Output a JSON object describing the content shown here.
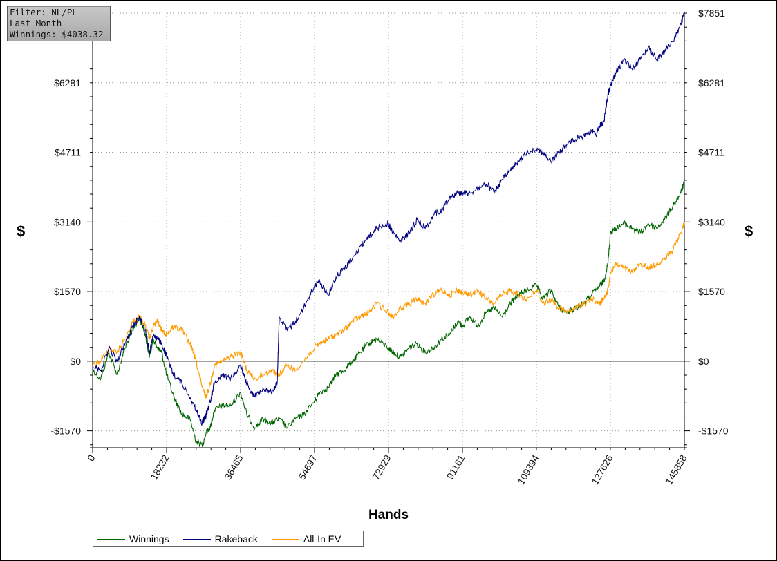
{
  "filter_box": {
    "line1": "Filter: NL/PL",
    "line2": "Last Month",
    "line3": "Winnings: $4038.32"
  },
  "chart_data": {
    "type": "line",
    "xlabel": "Hands",
    "ylabel": "$",
    "y2label": "$",
    "xlim": [
      0,
      145858
    ],
    "ylim": [
      -1950,
      7851
    ],
    "x_ticks": [
      0,
      18232,
      36465,
      54697,
      72929,
      91161,
      109394,
      127626,
      145858
    ],
    "x_tick_labels": [
      "0",
      "18232",
      "36465",
      "54697",
      "72929",
      "91161",
      "109394",
      "127626",
      "145858"
    ],
    "y_ticks": [
      -1570,
      0,
      1570,
      3140,
      4711,
      6281,
      7851
    ],
    "y_tick_labels": [
      "-$1570",
      "$0",
      "$1570",
      "$3140",
      "$4711",
      "$6281",
      "$7851"
    ],
    "grid": true,
    "legend_position": "bottom-left",
    "series": [
      {
        "name": "Winnings",
        "color": "#006400",
        "x": [
          0,
          2000,
          4000,
          6000,
          8000,
          10000,
          11500,
          13000,
          14000,
          15000,
          16000,
          17000,
          18232,
          20000,
          22000,
          24000,
          25500,
          27000,
          28000,
          29000,
          30000,
          32000,
          34000,
          36465,
          38000,
          40000,
          42000,
          44000,
          46000,
          48000,
          50000,
          52000,
          54697,
          56000,
          58000,
          60000,
          62000,
          64000,
          66000,
          68000,
          70000,
          72929,
          74000,
          76000,
          78000,
          80000,
          82000,
          84000,
          86000,
          88000,
          90000,
          91161,
          93000,
          95000,
          97000,
          99000,
          101000,
          103000,
          105000,
          107000,
          109394,
          111000,
          113000,
          115000,
          117000,
          119000,
          121000,
          123000,
          125000,
          126000,
          127000,
          127626,
          129000,
          131000,
          133000,
          135000,
          137000,
          139000,
          141000,
          143000,
          145000,
          145858
        ],
        "y": [
          -200,
          -400,
          200,
          -300,
          300,
          700,
          1000,
          600,
          100,
          500,
          300,
          200,
          -300,
          -800,
          -1200,
          -1300,
          -1800,
          -1900,
          -1600,
          -1500,
          -1100,
          -1000,
          -1000,
          -700,
          -1200,
          -1500,
          -1300,
          -1400,
          -1300,
          -1500,
          -1300,
          -1200,
          -900,
          -700,
          -600,
          -300,
          -200,
          0,
          200,
          400,
          500,
          300,
          200,
          100,
          300,
          400,
          200,
          300,
          500,
          600,
          900,
          800,
          1000,
          800,
          1100,
          1200,
          1000,
          1300,
          1500,
          1600,
          1700,
          1400,
          1600,
          1200,
          1100,
          1200,
          1300,
          1500,
          1700,
          1800,
          2200,
          2900,
          3000,
          3100,
          3000,
          2900,
          3100,
          3000,
          3200,
          3500,
          3800,
          4038
        ]
      },
      {
        "name": "Rakeback",
        "color": "#000080",
        "x": [
          0,
          2000,
          4000,
          6000,
          8000,
          10000,
          11500,
          13000,
          14000,
          15000,
          16000,
          17000,
          18232,
          20000,
          22000,
          24000,
          25500,
          27000,
          28000,
          29000,
          30000,
          32000,
          34000,
          36465,
          38000,
          40000,
          42000,
          44000,
          45500,
          46000,
          48000,
          50000,
          52000,
          54697,
          56000,
          58000,
          60000,
          62000,
          64000,
          66000,
          68000,
          70000,
          72929,
          74000,
          76000,
          78000,
          80000,
          82000,
          84000,
          86000,
          88000,
          90000,
          91161,
          93000,
          95000,
          97000,
          99000,
          101000,
          103000,
          105000,
          107000,
          109394,
          111000,
          113000,
          115000,
          117000,
          119000,
          121000,
          123000,
          124000,
          125000,
          126000,
          127000,
          127626,
          129000,
          131000,
          133000,
          135000,
          137000,
          139000,
          141000,
          143000,
          145000,
          145858
        ],
        "y": [
          -100,
          -200,
          300,
          0,
          400,
          800,
          1000,
          700,
          200,
          600,
          500,
          400,
          100,
          -300,
          -500,
          -800,
          -1100,
          -1400,
          -1200,
          -900,
          -500,
          -300,
          -400,
          -100,
          -500,
          -800,
          -600,
          -700,
          -500,
          1000,
          700,
          900,
          1200,
          1700,
          1800,
          1500,
          1900,
          2100,
          2300,
          2600,
          2800,
          3000,
          3100,
          2900,
          2700,
          2900,
          3200,
          3000,
          3300,
          3400,
          3700,
          3800,
          3800,
          3800,
          3900,
          4000,
          3800,
          4100,
          4300,
          4500,
          4700,
          4800,
          4700,
          4500,
          4700,
          4900,
          5000,
          5100,
          5200,
          5100,
          5300,
          5400,
          6000,
          6200,
          6500,
          6800,
          6600,
          6800,
          7100,
          6800,
          7000,
          7200,
          7600,
          7851
        ]
      },
      {
        "name": "All-In EV",
        "color": "#ff9900",
        "x": [
          0,
          2000,
          4000,
          6000,
          8000,
          10000,
          11500,
          13000,
          14000,
          15000,
          16000,
          17000,
          18232,
          20000,
          22000,
          24000,
          25500,
          27000,
          28000,
          29000,
          30000,
          32000,
          34000,
          36465,
          38000,
          40000,
          42000,
          44000,
          46000,
          48000,
          50000,
          52000,
          54697,
          56000,
          58000,
          60000,
          62000,
          64000,
          66000,
          68000,
          70000,
          72929,
          74000,
          76000,
          78000,
          80000,
          82000,
          84000,
          86000,
          88000,
          90000,
          91161,
          93000,
          95000,
          97000,
          99000,
          101000,
          103000,
          105000,
          107000,
          109394,
          111000,
          113000,
          115000,
          117000,
          119000,
          121000,
          123000,
          125000,
          126000,
          127000,
          127626,
          129000,
          131000,
          133000,
          135000,
          137000,
          139000,
          141000,
          143000,
          145000,
          145858
        ],
        "y": [
          -100,
          0,
          300,
          200,
          500,
          900,
          1000,
          800,
          500,
          800,
          900,
          700,
          600,
          800,
          700,
          400,
          0,
          -600,
          -800,
          -500,
          -100,
          0,
          100,
          200,
          -200,
          -400,
          -300,
          -200,
          -300,
          -100,
          -200,
          0,
          300,
          400,
          500,
          600,
          700,
          900,
          1000,
          1100,
          1300,
          1100,
          1000,
          1200,
          1300,
          1400,
          1300,
          1500,
          1600,
          1500,
          1600,
          1550,
          1500,
          1600,
          1400,
          1300,
          1500,
          1600,
          1500,
          1400,
          1600,
          1300,
          1400,
          1200,
          1100,
          1200,
          1300,
          1400,
          1300,
          1400,
          1600,
          2000,
          2200,
          2100,
          2000,
          2200,
          2100,
          2200,
          2300,
          2500,
          2900,
          3140
        ]
      }
    ]
  }
}
